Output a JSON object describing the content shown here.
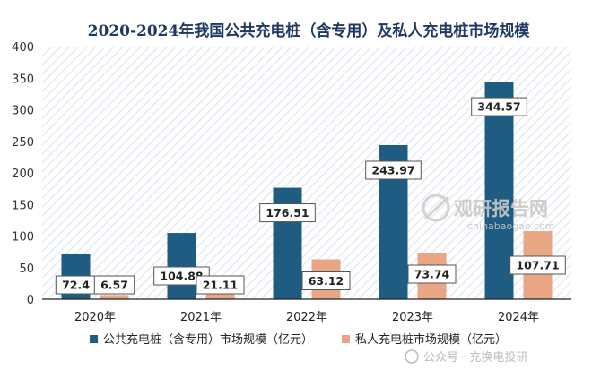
{
  "watermark": {
    "brand": "观研报告网",
    "url": "chinabaogao.com",
    "source": "公众号 · 充换电投研"
  },
  "colors": {
    "public": "#1f5c82",
    "private": "#e8a684",
    "title": "#1f3864"
  },
  "chart_data": {
    "type": "bar",
    "title": "2020-2024年我国公共充电桩（含专用）及私人充电桩市场规模",
    "categories": [
      "2020年",
      "2021年",
      "2022年",
      "2023年",
      "2024年"
    ],
    "series": [
      {
        "name": "公共充电桩（含专用）市场规模（亿元）",
        "values": [
          72.4,
          104.88,
          176.51,
          243.97,
          344.57
        ],
        "labels": [
          "72.4",
          "104.88",
          "176.51",
          "243.97",
          "344.57"
        ]
      },
      {
        "name": "私人充电桩市场规模（亿元）",
        "values": [
          6.57,
          21.11,
          63.12,
          73.74,
          107.71
        ],
        "labels": [
          "6.57",
          "21.11",
          "63.12",
          "73.74",
          "107.71"
        ]
      }
    ],
    "ylim": [
      0,
      400
    ],
    "yticks": [
      0,
      50,
      100,
      150,
      200,
      250,
      300,
      350,
      400
    ],
    "grid": false,
    "legend": "bottom"
  }
}
